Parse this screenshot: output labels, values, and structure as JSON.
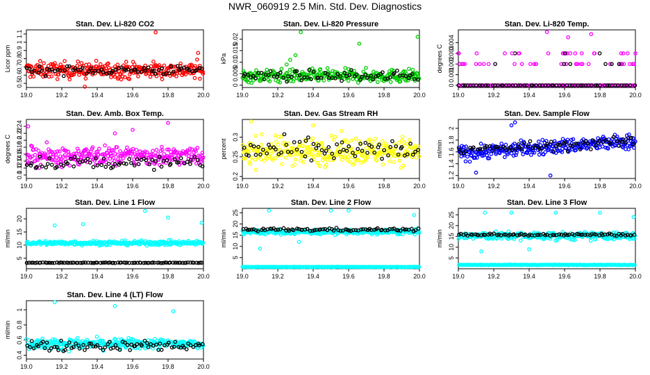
{
  "page_title": "NWR_060919  2.5 Min. Std. Dev. Diagnostics",
  "chart_data": [
    {
      "type": "scatter",
      "title": "Stan. Dev. Li-820 CO2",
      "ylabel": "Licor ppm",
      "xlim": [
        19.0,
        20.0
      ],
      "ylim": [
        0.45,
        1.15
      ],
      "xticks": [
        19.0,
        19.2,
        19.4,
        19.6,
        19.8,
        20.0
      ],
      "yticks": [
        0.5,
        0.6,
        0.7,
        0.8,
        0.9,
        1.0,
        1.1
      ],
      "series": [
        {
          "color": "#ff0000",
          "center": 0.66,
          "spread": 0.07,
          "n": 300,
          "trend": 0
        },
        {
          "color": "#000000",
          "center": 0.66,
          "spread": 0.04,
          "n": 70,
          "trend": 0
        }
      ],
      "outliers": [
        [
          19.73,
          1.12
        ],
        [
          19.33,
          0.46
        ],
        [
          19.97,
          0.87
        ]
      ]
    },
    {
      "type": "scatter",
      "title": "Stan. Dev. Li-820 Pressure",
      "ylabel": "kPa",
      "xlim": [
        19.0,
        20.0
      ],
      "ylim": [
        -0.001,
        0.024
      ],
      "xticks": [
        19.0,
        19.2,
        19.4,
        19.6,
        19.8,
        20.0
      ],
      "yticks": [
        0.0,
        0.005,
        0.01,
        0.015,
        0.02
      ],
      "series": [
        {
          "color": "#00cc00",
          "center": 0.004,
          "spread": 0.002,
          "n": 300,
          "trend": 0
        },
        {
          "color": "#000000",
          "center": 0.004,
          "spread": 0.0015,
          "n": 70,
          "trend": 0
        }
      ],
      "outliers": [
        [
          19.33,
          0.023
        ],
        [
          19.99,
          0.021
        ],
        [
          19.66,
          0.018
        ],
        [
          19.3,
          0.013
        ],
        [
          19.27,
          0.011
        ],
        [
          19.25,
          0.009
        ]
      ]
    },
    {
      "type": "scatter",
      "title": "Stan. Dev. Li-820 Temp.",
      "ylabel": "degrees C",
      "xlim": [
        19.0,
        20.0
      ],
      "ylim": [
        -0.0002,
        0.0052
      ],
      "xticks": [
        19.0,
        19.2,
        19.4,
        19.6,
        19.8,
        20.0
      ],
      "yticks": [
        0.0,
        0.001,
        0.002,
        0.003,
        0.004
      ],
      "levels": [
        0.0,
        0.002,
        0.003
      ],
      "series": [
        {
          "color": "#ff00ff",
          "center": 0.0,
          "spread": 0,
          "n": 120,
          "trend": 0
        },
        {
          "color": "#000000",
          "center": 0.0,
          "spread": 0,
          "n": 60,
          "trend": 0
        }
      ],
      "outliers": [
        [
          19.5,
          0.005
        ],
        [
          19.62,
          0.0045
        ],
        [
          19.75,
          0.0048
        ],
        [
          19.0,
          0.003
        ],
        [
          20.0,
          0.003
        ]
      ]
    },
    {
      "type": "scatter",
      "title": "Stan. Dev. Amb. Box Temp.",
      "ylabel": "degrees C",
      "xlim": [
        19.0,
        20.0
      ],
      "ylim": [
        0.09,
        0.26
      ],
      "xticks": [
        19.0,
        19.2,
        19.4,
        19.6,
        19.8,
        20.0
      ],
      "yticks": [
        0.1,
        0.12,
        0.14,
        0.16,
        0.18,
        0.2,
        0.22,
        0.24
      ],
      "series": [
        {
          "color": "#ff00ff",
          "center": 0.155,
          "spread": 0.02,
          "n": 300,
          "trend": 0
        },
        {
          "color": "#000000",
          "center": 0.135,
          "spread": 0.012,
          "n": 70,
          "trend": 0
        }
      ],
      "outliers": [
        [
          19.8,
          0.25
        ],
        [
          19.01,
          0.24
        ],
        [
          19.6,
          0.23
        ],
        [
          19.5,
          0.22
        ]
      ]
    },
    {
      "type": "scatter",
      "title": "Stan. Dev. Gas Stream RH",
      "ylabel": "percent",
      "xlim": [
        19.0,
        20.0
      ],
      "ylim": [
        0.195,
        0.345
      ],
      "xticks": [
        19.0,
        19.2,
        19.4,
        19.6,
        19.8,
        20.0
      ],
      "yticks": [
        0.2,
        0.25,
        0.3
      ],
      "series": [
        {
          "color": "#ffff00",
          "center": 0.265,
          "spread": 0.025,
          "n": 300,
          "trend": 0
        },
        {
          "color": "#000000",
          "center": 0.265,
          "spread": 0.02,
          "n": 70,
          "trend": 0
        }
      ],
      "outliers": [
        [
          19.05,
          0.34
        ],
        [
          19.4,
          0.33
        ]
      ]
    },
    {
      "type": "scatter",
      "title": "Stan. Dev. Sample Flow",
      "ylabel": "ml/min",
      "xlim": [
        19.0,
        20.0
      ],
      "ylim": [
        1.15,
        2.15
      ],
      "xticks": [
        19.0,
        19.2,
        19.4,
        19.6,
        19.8,
        20.0
      ],
      "yticks": [
        1.2,
        1.4,
        1.6,
        1.8,
        2.0
      ],
      "series": [
        {
          "color": "#0000ff",
          "center": 1.68,
          "spread": 0.09,
          "n": 300,
          "trend": 0.2
        },
        {
          "color": "#000000",
          "center": 1.7,
          "spread": 0.06,
          "n": 70,
          "trend": 0.15
        }
      ],
      "outliers": [
        [
          19.32,
          2.1
        ],
        [
          19.3,
          2.05
        ],
        [
          19.52,
          1.2
        ],
        [
          19.1,
          1.25
        ]
      ]
    },
    {
      "type": "scatter",
      "title": "Stan. Dev. Line 1 Flow",
      "ylabel": "ml/min",
      "xlim": [
        19.0,
        20.0
      ],
      "ylim": [
        1,
        24
      ],
      "xticks": [
        19.0,
        19.2,
        19.4,
        19.6,
        19.8,
        20.0
      ],
      "yticks": [
        5,
        10,
        15,
        20
      ],
      "series": [
        {
          "color": "#00ffff",
          "center": 10.8,
          "spread": 0.6,
          "n": 300,
          "trend": 0
        },
        {
          "color": "#000000",
          "center": 3.3,
          "spread": 0.08,
          "n": 90,
          "trend": 0
        }
      ],
      "outliers": [
        [
          19.32,
          18
        ],
        [
          19.16,
          17.5
        ],
        [
          19.67,
          23
        ],
        [
          19.8,
          20.5
        ],
        [
          19.99,
          18.5
        ]
      ]
    },
    {
      "type": "scatter",
      "title": "Stan. Dev. Line 2 Flow",
      "ylabel": "ml/min",
      "xlim": [
        19.0,
        20.0
      ],
      "ylim": [
        0,
        27
      ],
      "xticks": [
        19.0,
        19.2,
        19.4,
        19.6,
        19.8,
        20.0
      ],
      "yticks": [
        5,
        10,
        15,
        20,
        25
      ],
      "series": [
        {
          "color": "#00ffff",
          "center": 16.5,
          "spread": 0.8,
          "n": 300,
          "trend": 0
        },
        {
          "color": "#000000",
          "center": 17.5,
          "spread": 0.5,
          "n": 80,
          "trend": 0
        },
        {
          "color": "#00ffff",
          "center": 0.8,
          "spread": 0.05,
          "n": 200,
          "trend": 0
        }
      ],
      "outliers": [
        [
          19.1,
          9
        ],
        [
          19.15,
          26
        ],
        [
          19.5,
          26
        ],
        [
          19.97,
          24
        ],
        [
          19.32,
          12
        ],
        [
          19.6,
          26
        ]
      ]
    },
    {
      "type": "scatter",
      "title": "Stan. Dev. Line 3 Flow",
      "ylabel": "ml/min",
      "xlim": [
        19.0,
        20.0
      ],
      "ylim": [
        0,
        28
      ],
      "xticks": [
        19.0,
        19.2,
        19.4,
        19.6,
        19.8,
        20.0
      ],
      "yticks": [
        5,
        10,
        15,
        20,
        25
      ],
      "series": [
        {
          "color": "#00ffff",
          "center": 15.2,
          "spread": 1.3,
          "n": 300,
          "trend": 0
        },
        {
          "color": "#000000",
          "center": 15.8,
          "spread": 0.4,
          "n": 80,
          "trend": 0
        },
        {
          "color": "#00ffff",
          "center": 1.8,
          "spread": 0.1,
          "n": 200,
          "trend": 0
        }
      ],
      "outliers": [
        [
          19.15,
          26
        ],
        [
          19.3,
          26
        ],
        [
          19.55,
          26
        ],
        [
          19.8,
          26
        ],
        [
          19.99,
          24
        ],
        [
          19.13,
          8
        ],
        [
          19.4,
          9
        ]
      ]
    },
    {
      "type": "scatter",
      "title": "Stan. Dev. Line 4 (LT) Flow",
      "ylabel": "ml/min",
      "xlim": [
        19.0,
        20.0
      ],
      "ylim": [
        0.35,
        1.12
      ],
      "xticks": [
        19.0,
        19.2,
        19.4,
        19.6,
        19.8,
        20.0
      ],
      "yticks": [
        0.4,
        0.6,
        0.8,
        1.0
      ],
      "series": [
        {
          "color": "#00ffff",
          "center": 0.55,
          "spread": 0.05,
          "n": 300,
          "trend": 0
        },
        {
          "color": "#000000",
          "center": 0.53,
          "spread": 0.05,
          "n": 80,
          "trend": 0
        }
      ],
      "outliers": [
        [
          19.16,
          1.1
        ],
        [
          19.5,
          1.05
        ],
        [
          19.83,
          0.98
        ]
      ]
    }
  ]
}
